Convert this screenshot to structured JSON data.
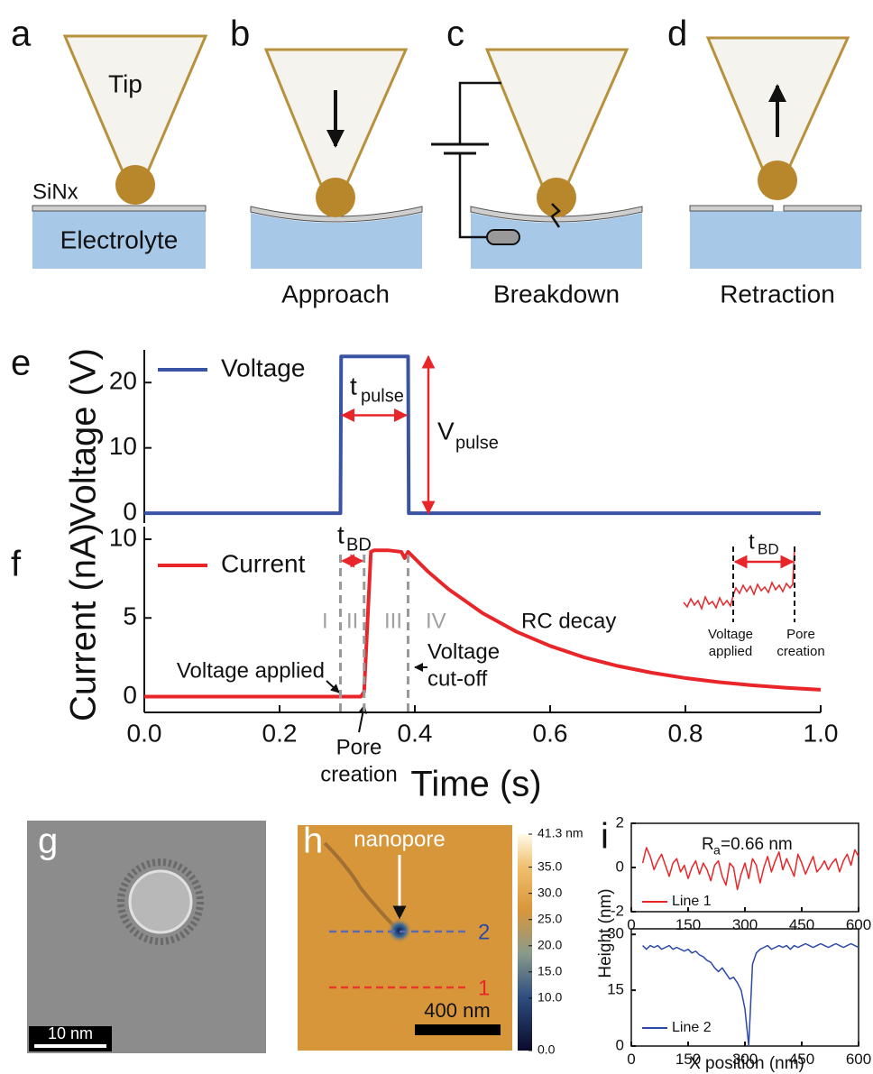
{
  "schematic": {
    "a": {
      "label": "a",
      "tip": "Tip",
      "membrane": "SiNx",
      "electrolyte": "Electrolyte"
    },
    "b": {
      "label": "b",
      "caption": "Approach"
    },
    "c": {
      "label": "c",
      "caption": "Breakdown"
    },
    "d": {
      "label": "d",
      "caption": "Retraction"
    }
  },
  "panel_e": {
    "label": "e"
  },
  "panel_f": {
    "label": "f"
  },
  "chart_data": [
    {
      "type": "line",
      "ylabel": "Voltage (V)",
      "xlim": [
        0,
        1
      ],
      "ylim": [
        -1.5,
        25
      ],
      "yticks": [
        0,
        10,
        20
      ],
      "series": [
        {
          "name": "Voltage",
          "color": "#3a53a4",
          "x": [
            0,
            0.29,
            0.291,
            0.39,
            0.391,
            1.0
          ],
          "values": [
            0,
            0,
            24,
            24,
            0,
            0
          ]
        }
      ],
      "annotations": {
        "pulse_width": {
          "symbol": "t",
          "subscript": "pulse",
          "x": [
            0.29,
            0.39
          ],
          "y": 15
        },
        "pulse_height": {
          "symbol": "V",
          "subscript": "pulse",
          "y": [
            0,
            24
          ]
        }
      }
    },
    {
      "type": "line",
      "ylabel": "Current (nA)",
      "xlabel": "Time (s)",
      "xlim": [
        0,
        1
      ],
      "ylim": [
        -1,
        10.8
      ],
      "xticks": [
        {
          "value": 0,
          "label": "0.0"
        },
        0.2,
        0.4,
        0.6,
        0.8,
        {
          "value": 1,
          "label": "1.0"
        }
      ],
      "yticks": [
        0,
        5,
        10
      ],
      "series": [
        {
          "name": "Current",
          "color": "#e8262a",
          "x": [
            0,
            0.32,
            0.325,
            0.335,
            0.34,
            0.36,
            0.38,
            0.385,
            0.39,
            0.42,
            0.45,
            0.5,
            0.55,
            0.6,
            0.65,
            0.7,
            0.75,
            0.8,
            0.85,
            0.9,
            0.95,
            1.0
          ],
          "values": [
            0,
            0,
            0.3,
            9.2,
            9.3,
            9.3,
            9.2,
            8.8,
            9.2,
            7.92,
            6.82,
            5.31,
            4.13,
            3.22,
            2.5,
            1.95,
            1.52,
            1.18,
            0.92,
            0.72,
            0.56,
            0.44
          ]
        }
      ],
      "markers": {
        "voltage_applied": 0.29,
        "pore_creation": 0.325,
        "voltage_cutoff": 0.39
      },
      "annotations": {
        "breakdown_time": {
          "symbol": "t",
          "subscript": "BD"
        },
        "regions": [
          "I",
          "II",
          "III",
          "IV"
        ],
        "rc_decay": "RC decay",
        "voltage_applied": "Voltage applied",
        "voltage_cutoff": [
          "Voltage",
          "cut-off"
        ],
        "pore_creation": [
          "Pore",
          "creation"
        ],
        "inset": {
          "symbol": "t",
          "subscript": "BD",
          "left_label": [
            "Voltage",
            "applied"
          ],
          "right_label": [
            "Pore",
            "creation"
          ]
        }
      }
    },
    {
      "type": "line",
      "xlim": [
        0,
        600
      ],
      "xticks": [
        0,
        150,
        300,
        450,
        600
      ],
      "ylim": [
        -2,
        2
      ],
      "yticks": [
        -2,
        0,
        2
      ],
      "series": [
        {
          "name": "Line 1",
          "color": "#e8262a",
          "x": [
            30,
            40,
            50,
            60,
            70,
            80,
            90,
            100,
            110,
            120,
            130,
            140,
            150,
            160,
            170,
            180,
            190,
            200,
            210,
            220,
            230,
            240,
            250,
            260,
            270,
            280,
            290,
            300,
            310,
            320,
            330,
            340,
            350,
            360,
            370,
            380,
            390,
            400,
            410,
            420,
            430,
            440,
            450,
            460,
            470,
            480,
            490,
            500,
            510,
            520,
            530,
            540,
            550,
            560,
            570,
            580,
            590,
            600
          ],
          "values": [
            0.2,
            0.9,
            0.5,
            -0.1,
            0.3,
            0.6,
            0.1,
            -0.4,
            0.2,
            0.4,
            -0.2,
            0.1,
            -0.5,
            0.0,
            0.3,
            -0.3,
            0.2,
            -0.1,
            -0.6,
            0.1,
            0.3,
            -0.4,
            -0.8,
            0.2,
            0.0,
            -1.0,
            -0.3,
            0.2,
            -0.5,
            0.4,
            0.1,
            -0.7,
            0.0,
            0.5,
            -0.2,
            0.3,
            0.7,
            -0.1,
            0.4,
            0.0,
            -0.4,
            0.6,
            0.2,
            -0.3,
            0.1,
            0.5,
            -0.2,
            0.0,
            0.3,
            -0.1,
            0.2,
            0.4,
            -0.2,
            0.3,
            0.6,
            0.1,
            0.8,
            0.5
          ]
        }
      ]
    },
    {
      "type": "line",
      "xlim": [
        0,
        600
      ],
      "xticks": [
        0,
        150,
        300,
        450,
        600
      ],
      "ylim": [
        0,
        31.5
      ],
      "yticks": [
        0,
        15,
        30
      ],
      "series": [
        {
          "name": "Line 2",
          "color": "#2b4aa8",
          "x": [
            30,
            40,
            50,
            60,
            70,
            80,
            90,
            100,
            110,
            120,
            130,
            140,
            150,
            160,
            170,
            180,
            190,
            200,
            210,
            220,
            230,
            240,
            250,
            260,
            270,
            280,
            290,
            300,
            310,
            320,
            330,
            340,
            350,
            360,
            370,
            380,
            390,
            400,
            410,
            420,
            430,
            440,
            450,
            460,
            470,
            480,
            490,
            500,
            510,
            520,
            530,
            540,
            550,
            560,
            570,
            580,
            590,
            600
          ],
          "values": [
            27,
            26,
            27,
            26.5,
            27,
            26,
            26.5,
            27,
            26,
            26.5,
            26,
            25.5,
            26,
            25,
            25.5,
            24.5,
            24,
            23,
            22.5,
            21,
            20,
            21,
            19.5,
            18,
            18.5,
            17,
            15,
            10,
            0,
            22,
            25,
            26,
            26.5,
            27,
            26,
            26.5,
            27,
            26.5,
            27,
            26,
            27,
            26.5,
            27,
            27.5,
            27,
            26.5,
            27,
            27.5,
            27,
            26.5,
            27,
            27.5,
            27,
            26.5,
            27,
            27.5,
            27,
            26.5
          ]
        }
      ]
    }
  ],
  "panel_g": {
    "label": "g",
    "scale_bar": "10 nm"
  },
  "panel_h": {
    "label": "h",
    "annotation": "nanopore",
    "line_labels": [
      "1",
      "2"
    ],
    "scale_bar": "400 nm",
    "colorbar": {
      "range": [
        0,
        41.3
      ],
      "ticks": [
        {
          "value": 41.3,
          "label": "41.3 nm"
        },
        {
          "value": 35,
          "label": "35.0"
        },
        {
          "value": 30,
          "label": "30.0"
        },
        {
          "value": 25,
          "label": "25.0"
        },
        {
          "value": 20,
          "label": "20.0"
        },
        {
          "value": 15,
          "label": "15.0"
        },
        {
          "value": 10,
          "label": "10.0"
        },
        {
          "value": 0,
          "label": "0.0"
        }
      ]
    }
  },
  "panel_i": {
    "label": "i",
    "ylabel": "Height (nm)",
    "xlabel": "X position (nm)",
    "roughness": {
      "symbol": "R",
      "subscript": "a",
      "text": "=0.66 nm"
    }
  }
}
